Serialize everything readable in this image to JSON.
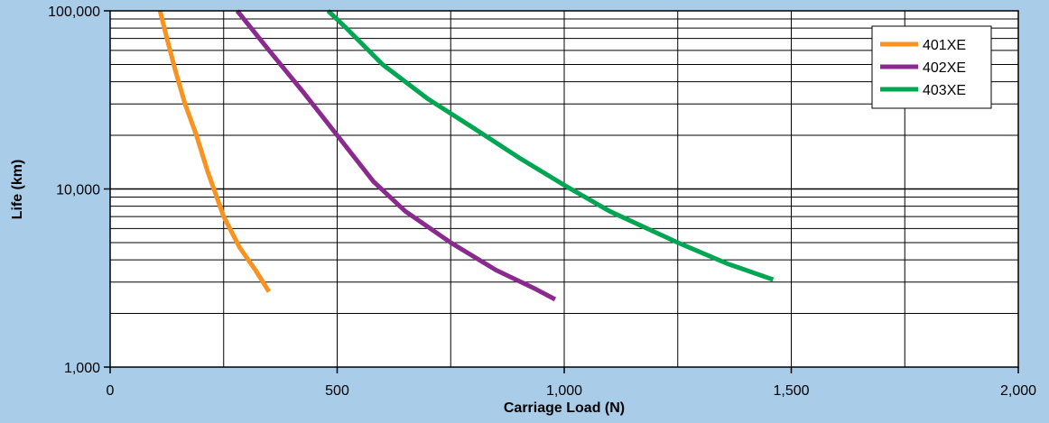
{
  "chart_data": {
    "type": "line",
    "title": "",
    "xlabel": "Carriage Load (N)",
    "ylabel": "Life  (km)",
    "xlim": [
      0,
      2000
    ],
    "ylim": [
      1000,
      100000
    ],
    "yscale": "log",
    "grid": true,
    "legend_position": "top-right",
    "x_ticks": [
      {
        "value": 0,
        "label": "0"
      },
      {
        "value": 500,
        "label": "500"
      },
      {
        "value": 1000,
        "label": "1,000"
      },
      {
        "value": 1500,
        "label": "1,500"
      },
      {
        "value": 2000,
        "label": "2,000"
      }
    ],
    "y_ticks": [
      {
        "value": 1000,
        "label": "1,000"
      },
      {
        "value": 10000,
        "label": "10,000"
      },
      {
        "value": 100000,
        "label": "100,000"
      }
    ],
    "series": [
      {
        "name": "401XE",
        "color": "#f7931e",
        "x": [
          110,
          125,
          145,
          165,
          190,
          215,
          250,
          285,
          320,
          350
        ],
        "y": [
          100000,
          70000,
          45000,
          30000,
          20000,
          12500,
          7000,
          4700,
          3500,
          2650
        ]
      },
      {
        "name": "402XE",
        "color": "#8b2a8e",
        "x": [
          280,
          350,
          425,
          500,
          580,
          650,
          750,
          850,
          930,
          980
        ],
        "y": [
          100000,
          60000,
          35000,
          20000,
          11000,
          7500,
          5000,
          3500,
          2800,
          2400
        ]
      },
      {
        "name": "403XE",
        "color": "#00a651",
        "x": [
          480,
          520,
          600,
          700,
          800,
          900,
          1000,
          1100,
          1250,
          1360,
          1460
        ],
        "y": [
          100000,
          80000,
          50000,
          32000,
          22000,
          15000,
          10500,
          7500,
          5000,
          3800,
          3100
        ]
      }
    ]
  }
}
